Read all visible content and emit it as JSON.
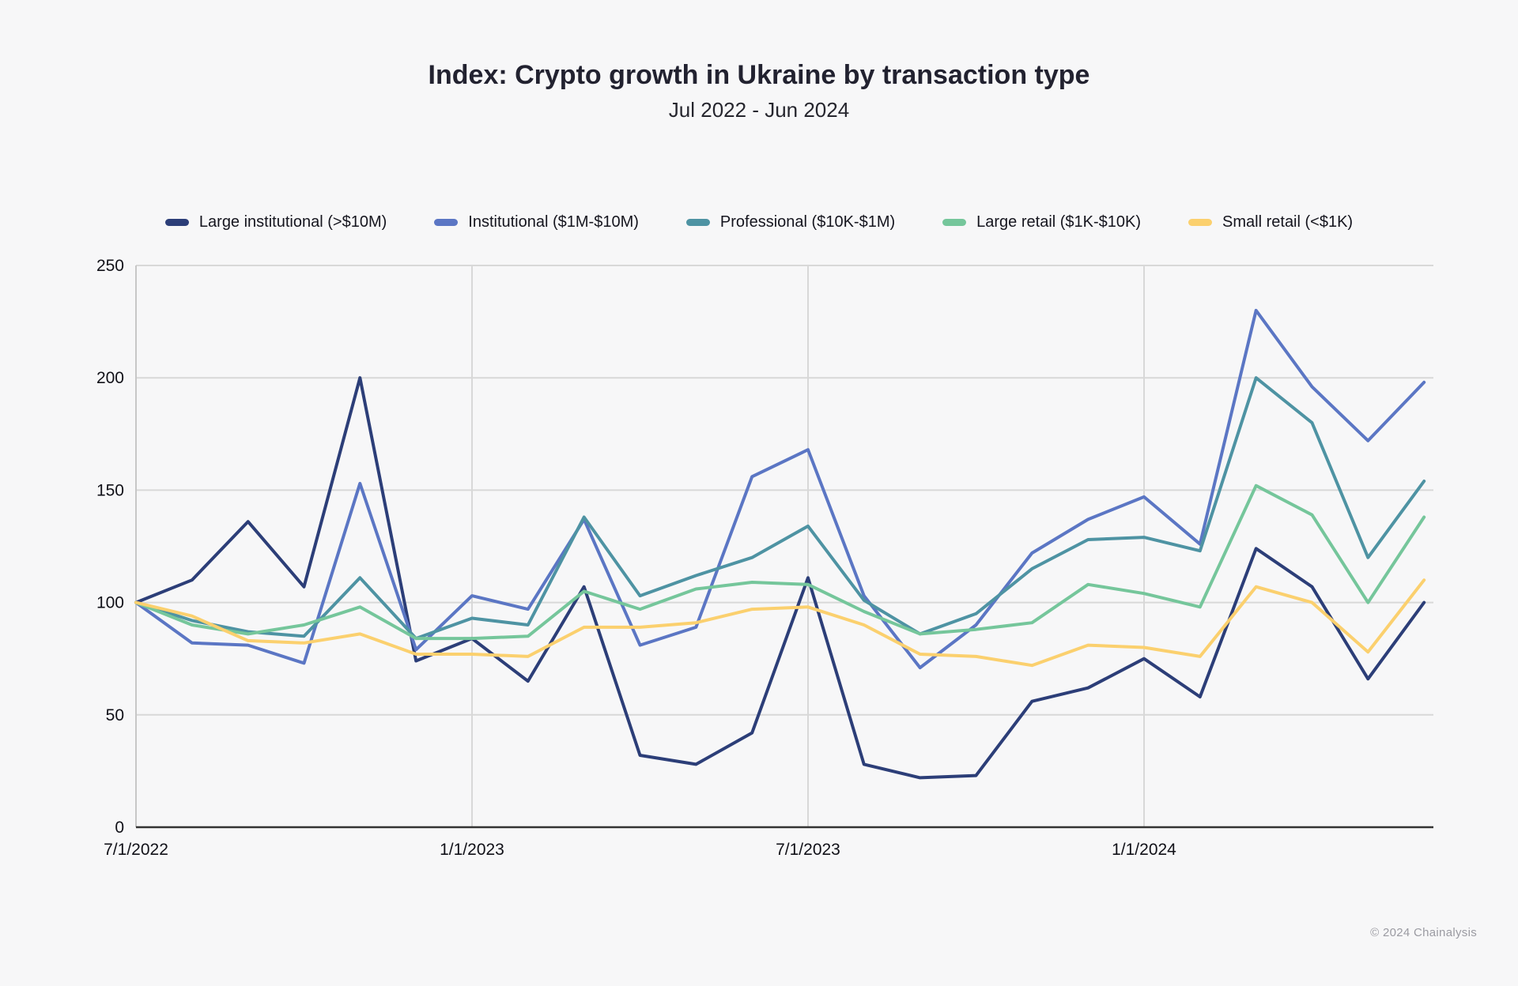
{
  "header": {
    "title": "Index: Crypto growth in Ukraine by transaction type",
    "subtitle": "Jul 2022 - Jun 2024"
  },
  "footer": {
    "copyright": "© 2024 Chainalysis"
  },
  "colors": {
    "background": "#f7f7f8",
    "gridline": "#d8d8d8",
    "y_axis_line": "#c7c7c7",
    "x_axis_line": "#333333",
    "title_text": "#222230",
    "tick_text": "#111118",
    "footer_text": "#9b9ba2"
  },
  "chart_data": {
    "type": "line",
    "title": "Index: Crypto growth in Ukraine by transaction type",
    "subtitle": "Jul 2022 - Jun 2024",
    "xlabel": "",
    "ylabel": "",
    "ylim": [
      0,
      250
    ],
    "yticks": [
      0,
      50,
      100,
      150,
      200,
      250
    ],
    "grid": true,
    "legend_position": "top",
    "x": [
      "Jul 2022",
      "Aug 2022",
      "Sep 2022",
      "Oct 2022",
      "Nov 2022",
      "Dec 2022",
      "Jan 2023",
      "Feb 2023",
      "Mar 2023",
      "Apr 2023",
      "May 2023",
      "Jun 2023",
      "Jul 2023",
      "Aug 2023",
      "Sep 2023",
      "Oct 2023",
      "Nov 2023",
      "Dec 2023",
      "Jan 2024",
      "Feb 2024",
      "Mar 2024",
      "Apr 2024",
      "May 2024",
      "Jun 2024"
    ],
    "x_axis_ticks": [
      {
        "label": "7/1/2022",
        "month_index": 0
      },
      {
        "label": "1/1/2023",
        "month_index": 6
      },
      {
        "label": "7/1/2023",
        "month_index": 12
      },
      {
        "label": "1/1/2024",
        "month_index": 18
      }
    ],
    "series": [
      {
        "name": "Large institutional (>$10M)",
        "color": "#2c3e78",
        "values": [
          100,
          110,
          136,
          107,
          200,
          74,
          84,
          65,
          107,
          32,
          28,
          42,
          111,
          28,
          22,
          23,
          56,
          62,
          75,
          58,
          124,
          107,
          66,
          100
        ]
      },
      {
        "name": "Institutional ($1M-$10M)",
        "color": "#5b76c4",
        "values": [
          100,
          82,
          81,
          73,
          153,
          79,
          103,
          97,
          137,
          81,
          89,
          156,
          168,
          103,
          71,
          90,
          122,
          137,
          147,
          126,
          230,
          196,
          172,
          198
        ]
      },
      {
        "name": "Professional ($10K-$1M)",
        "color": "#4e93a3",
        "values": [
          100,
          92,
          87,
          85,
          111,
          84,
          93,
          90,
          138,
          103,
          112,
          120,
          134,
          101,
          86,
          95,
          115,
          128,
          129,
          123,
          200,
          180,
          120,
          154
        ]
      },
      {
        "name": "Large retail ($1K-$10K)",
        "color": "#75c69b",
        "values": [
          100,
          90,
          86,
          90,
          98,
          84,
          84,
          85,
          105,
          97,
          106,
          109,
          108,
          96,
          86,
          88,
          91,
          108,
          104,
          98,
          152,
          139,
          100,
          138
        ]
      },
      {
        "name": "Small retail (<$1K)",
        "color": "#fbd06e",
        "values": [
          100,
          94,
          83,
          82,
          86,
          77,
          77,
          76,
          89,
          89,
          91,
          97,
          98,
          90,
          77,
          76,
          72,
          81,
          80,
          76,
          107,
          100,
          78,
          110
        ]
      }
    ]
  }
}
